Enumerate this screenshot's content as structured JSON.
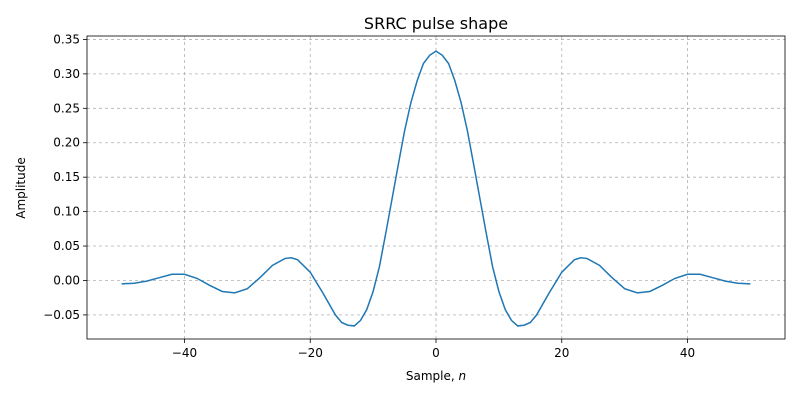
{
  "chart_data": {
    "type": "line",
    "title": "SRRC pulse shape",
    "xlabel_main": "Sample, ",
    "xlabel_var": "n",
    "ylabel": "Amplitude",
    "xlim": [
      -55.5,
      55.5
    ],
    "ylim": [
      -0.085,
      0.355
    ],
    "xticks": [
      -40,
      -20,
      0,
      20,
      40
    ],
    "xtick_labels": [
      "−40",
      "−20",
      "0",
      "20",
      "40"
    ],
    "yticks": [
      -0.05,
      0.0,
      0.05,
      0.1,
      0.15,
      0.2,
      0.25,
      0.3,
      0.35
    ],
    "ytick_labels": [
      "−0.05",
      "0.00",
      "0.05",
      "0.10",
      "0.15",
      "0.20",
      "0.25",
      "0.30",
      "0.35"
    ],
    "grid": true,
    "line_color": "#1f77b4",
    "grid_color": "#b0b0b0",
    "series": [
      {
        "x": [
          -50,
          -48,
          -46,
          -44,
          -42,
          -40,
          -38,
          -36,
          -34,
          -32,
          -30,
          -28,
          -26,
          -24,
          -23,
          -22,
          -20,
          -18,
          -16,
          -15,
          -14,
          -13,
          -12,
          -11,
          -10,
          -9,
          -8,
          -7,
          -6,
          -5,
          -4,
          -3,
          -2,
          -1,
          0,
          1,
          2,
          3,
          4,
          5,
          6,
          7,
          8,
          9,
          10,
          11,
          12,
          13,
          14,
          15,
          16,
          18,
          20,
          22,
          23,
          24,
          26,
          28,
          30,
          32,
          34,
          36,
          38,
          40,
          42,
          44,
          46,
          48,
          50
        ],
        "y": [
          -0.005,
          -0.004,
          -0.001,
          0.004,
          0.009,
          0.009,
          0.003,
          -0.007,
          -0.016,
          -0.018,
          -0.012,
          0.004,
          0.022,
          0.032,
          0.033,
          0.03,
          0.012,
          -0.018,
          -0.05,
          -0.061,
          -0.065,
          -0.066,
          -0.058,
          -0.042,
          -0.016,
          0.02,
          0.068,
          0.118,
          0.168,
          0.217,
          0.258,
          0.29,
          0.315,
          0.327,
          0.333,
          0.327,
          0.315,
          0.29,
          0.258,
          0.217,
          0.168,
          0.118,
          0.068,
          0.02,
          -0.016,
          -0.042,
          -0.058,
          -0.066,
          -0.065,
          -0.061,
          -0.05,
          -0.018,
          0.012,
          0.03,
          0.033,
          0.032,
          0.022,
          0.004,
          -0.012,
          -0.018,
          -0.016,
          -0.007,
          0.003,
          0.009,
          0.009,
          0.004,
          -0.001,
          -0.004,
          -0.005
        ]
      }
    ]
  }
}
